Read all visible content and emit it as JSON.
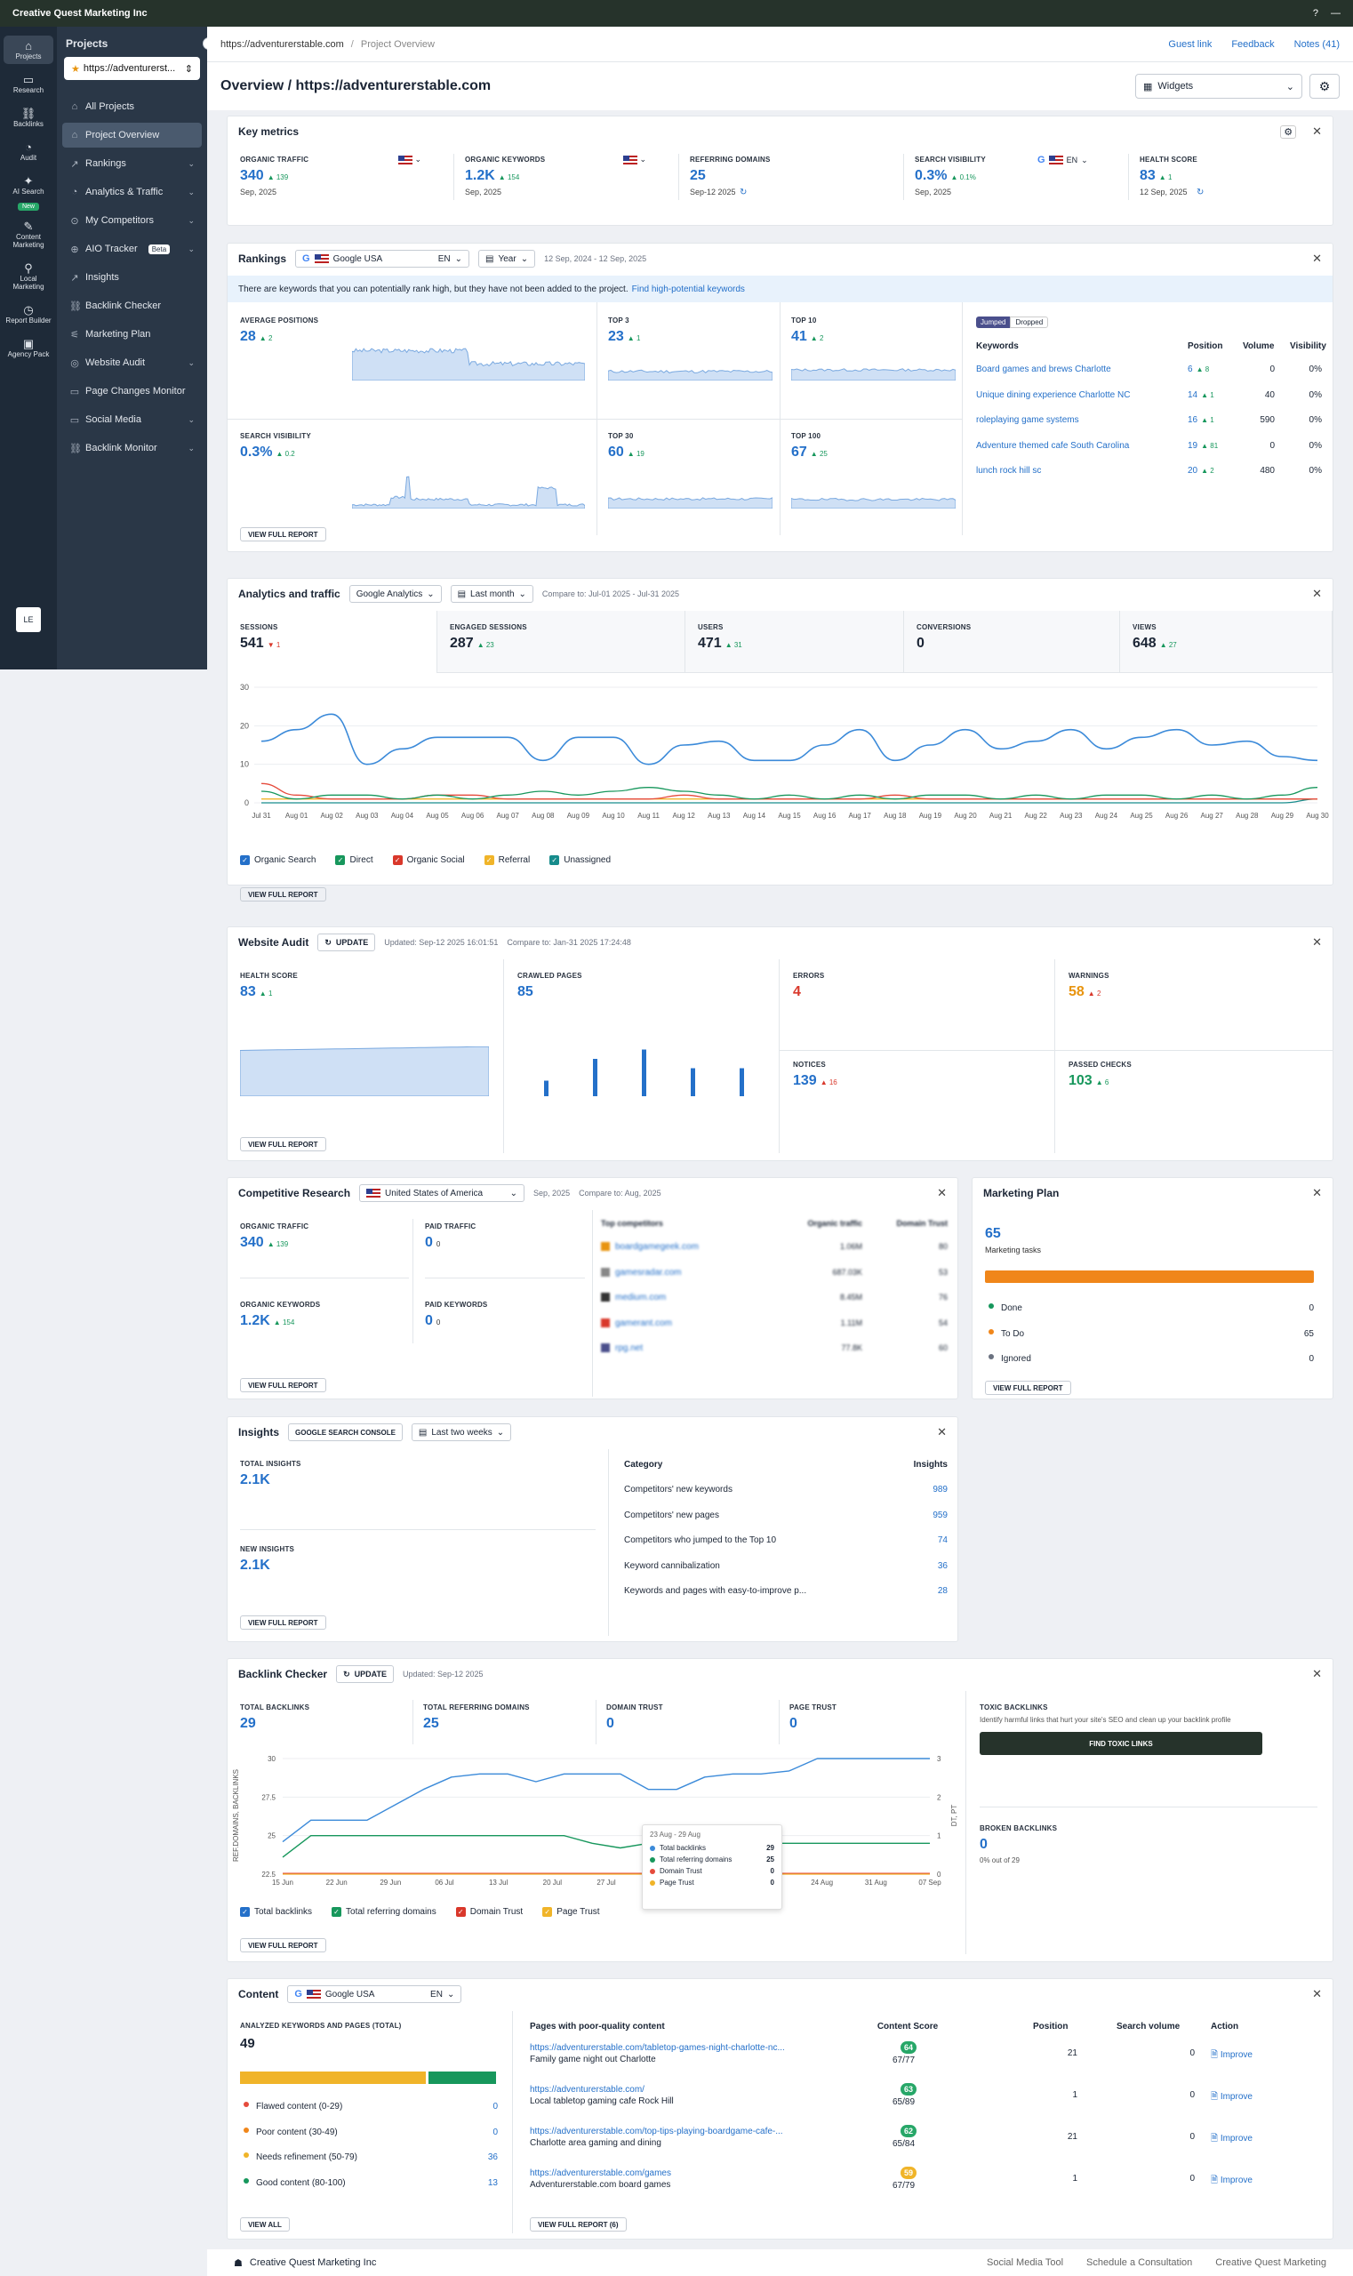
{
  "topbar": {
    "org": "Creative Quest Marketing Inc"
  },
  "rail": [
    {
      "label": "Projects",
      "icon": "home-icon"
    },
    {
      "label": "Research",
      "icon": "research-icon"
    },
    {
      "label": "Backlinks",
      "icon": "link-icon"
    },
    {
      "label": "Audit",
      "icon": "audit-icon"
    },
    {
      "label": "AI Search",
      "icon": "sparkle-icon"
    },
    {
      "label": "Content Marketing",
      "icon": "content-icon"
    },
    {
      "label": "Local Marketing",
      "icon": "pin-icon"
    },
    {
      "label": "Report Builder",
      "icon": "report-icon"
    },
    {
      "label": "Agency Pack",
      "icon": "agency-icon"
    }
  ],
  "rail_new": "New",
  "avatar": "LE",
  "sidebar": {
    "title": "Projects",
    "project": "https://adventurerst...",
    "items": [
      {
        "label": "All Projects"
      },
      {
        "label": "Project Overview"
      },
      {
        "label": "Rankings"
      },
      {
        "label": "Analytics & Traffic"
      },
      {
        "label": "My Competitors"
      },
      {
        "label": "AIO Tracker"
      },
      {
        "label": "Insights"
      },
      {
        "label": "Backlink Checker"
      },
      {
        "label": "Marketing Plan"
      },
      {
        "label": "Website Audit"
      },
      {
        "label": "Page Changes Monitor"
      },
      {
        "label": "Social Media"
      },
      {
        "label": "Backlink Monitor"
      }
    ],
    "beta": "Beta"
  },
  "crumb": {
    "site": "https://adventurerstable.com",
    "page": "Project Overview",
    "links": [
      "Guest link",
      "Feedback",
      "Notes (41)"
    ]
  },
  "header": {
    "title": "Overview / https://adventurerstable.com",
    "widgets": "Widgets"
  },
  "key_metrics": {
    "title": "Key metrics",
    "items": [
      {
        "label": "ORGANIC TRAFFIC",
        "value": "340",
        "delta": "▲ 139",
        "sub": "Sep, 2025"
      },
      {
        "label": "ORGANIC KEYWORDS",
        "value": "1.2K",
        "delta": "▲ 154",
        "sub": "Sep, 2025"
      },
      {
        "label": "REFERRING DOMAINS",
        "value": "25",
        "delta": "",
        "sub": "Sep-12 2025"
      },
      {
        "label": "SEARCH VISIBILITY",
        "value": "0.3%",
        "delta": "▲ 0.1%",
        "sub": "Sep, 2025",
        "lang": "EN"
      },
      {
        "label": "HEALTH SCORE",
        "value": "83",
        "delta": "▲ 1",
        "sub": "12 Sep, 2025"
      }
    ]
  },
  "rankings": {
    "title": "Rankings",
    "engine": "Google USA",
    "lang": "EN",
    "period": "Year",
    "range": "12 Sep, 2024 - 12 Sep, 2025",
    "notice": "There are keywords that you can potentially rank high, but they have not been added to the project.",
    "notice_link": "Find high-potential keywords",
    "avg": {
      "label": "AVERAGE POSITIONS",
      "value": "28",
      "delta": "▲ 2"
    },
    "vis": {
      "label": "SEARCH VISIBILITY",
      "value": "0.3%",
      "delta": "▲ 0.2"
    },
    "top3": {
      "label": "TOP 3",
      "value": "23",
      "delta": "▲ 1"
    },
    "top10": {
      "label": "TOP 10",
      "value": "41",
      "delta": "▲ 2"
    },
    "top30": {
      "label": "TOP 30",
      "value": "60",
      "delta": "▲ 19"
    },
    "top100": {
      "label": "TOP 100",
      "value": "67",
      "delta": "▲ 25"
    },
    "tabs": [
      "Jumped",
      "Dropped"
    ],
    "cols": [
      "Keywords",
      "Position",
      "Volume",
      "Visibility"
    ],
    "rows": [
      {
        "kw": "Board games and brews Charlotte",
        "pos": "6",
        "d": "▲ 8",
        "vol": "0",
        "vis": "0%"
      },
      {
        "kw": "Unique dining experience Charlotte NC",
        "pos": "14",
        "d": "▲ 1",
        "vol": "40",
        "vis": "0%"
      },
      {
        "kw": "roleplaying game systems",
        "pos": "16",
        "d": "▲ 1",
        "vol": "590",
        "vis": "0%"
      },
      {
        "kw": "Adventure themed cafe South Carolina",
        "pos": "19",
        "d": "▲ 81",
        "vol": "0",
        "vis": "0%"
      },
      {
        "kw": "lunch rock hill sc",
        "pos": "20",
        "d": "▲ 2",
        "vol": "480",
        "vis": "0%"
      }
    ],
    "vfr": "VIEW FULL REPORT"
  },
  "analytics": {
    "title": "Analytics and traffic",
    "source": "Google Analytics",
    "period": "Last month",
    "compare": "Compare to: Jul-01 2025 - Jul-31 2025",
    "metrics": [
      {
        "label": "SESSIONS",
        "value": "541",
        "delta": "▼ 1"
      },
      {
        "label": "ENGAGED SESSIONS",
        "value": "287",
        "delta": "▲ 23"
      },
      {
        "label": "USERS",
        "value": "471",
        "delta": "▲ 31"
      },
      {
        "label": "CONVERSIONS",
        "value": "0",
        "delta": ""
      },
      {
        "label": "VIEWS",
        "value": "648",
        "delta": "▲ 27"
      }
    ],
    "legend": [
      "Organic Search",
      "Direct",
      "Organic Social",
      "Referral",
      "Unassigned"
    ],
    "vfr": "VIEW FULL REPORT"
  },
  "chart_data": {
    "type": "line",
    "yticks": [
      "0",
      "10",
      "20",
      "30"
    ],
    "ylim": [
      0,
      30
    ],
    "categories": [
      "Jul 31",
      "Aug 01",
      "Aug 02",
      "Aug 03",
      "Aug 04",
      "Aug 05",
      "Aug 06",
      "Aug 07",
      "Aug 08",
      "Aug 09",
      "Aug 10",
      "Aug 11",
      "Aug 12",
      "Aug 13",
      "Aug 14",
      "Aug 15",
      "Aug 16",
      "Aug 17",
      "Aug 18",
      "Aug 19",
      "Aug 20",
      "Aug 21",
      "Aug 22",
      "Aug 23",
      "Aug 24",
      "Aug 25",
      "Aug 26",
      "Aug 27",
      "Aug 28",
      "Aug 29",
      "Aug 30"
    ],
    "series": [
      {
        "name": "Organic Search",
        "color": "#3b8ad9",
        "values": [
          16,
          19,
          23,
          10,
          14,
          17,
          17,
          17,
          11,
          17,
          17,
          10,
          15,
          16,
          11,
          11,
          15,
          19,
          11,
          15,
          19,
          14,
          16,
          19,
          14,
          17,
          19,
          15,
          16,
          12,
          11
        ]
      },
      {
        "name": "Direct",
        "color": "#17975c",
        "values": [
          3,
          1,
          2,
          2,
          1,
          2,
          1,
          2,
          3,
          2,
          3,
          4,
          3,
          2,
          1,
          2,
          1,
          2,
          1,
          2,
          2,
          1,
          2,
          1,
          2,
          2,
          1,
          2,
          1,
          2,
          4
        ]
      },
      {
        "name": "Organic Social",
        "color": "#e54b3c",
        "values": [
          5,
          2,
          1,
          1,
          1,
          2,
          2,
          1,
          1,
          1,
          1,
          1,
          2,
          1,
          1,
          1,
          1,
          1,
          2,
          1,
          1,
          1,
          1,
          1,
          1,
          1,
          1,
          1,
          1,
          1,
          1
        ]
      },
      {
        "name": "Referral",
        "color": "#f0b429",
        "values": [
          1,
          1,
          1,
          1,
          1,
          1,
          1,
          1,
          1,
          1,
          1,
          1,
          1,
          1,
          1,
          1,
          1,
          1,
          1,
          1,
          1,
          1,
          1,
          1,
          1,
          1,
          1,
          1,
          1,
          1,
          1
        ]
      },
      {
        "name": "Unassigned",
        "color": "#178c8c",
        "values": [
          0,
          0,
          0,
          0,
          0,
          0,
          0,
          0,
          0,
          0,
          0,
          0,
          0,
          0,
          0,
          0,
          0,
          0,
          0,
          0,
          0,
          0,
          0,
          0,
          0,
          0,
          0,
          0,
          0,
          0,
          1
        ]
      }
    ]
  },
  "audit": {
    "title": "Website Audit",
    "update": "UPDATE",
    "updated": "Updated: Sep-12 2025 16:01:51",
    "compare": "Compare to: Jan-31 2025 17:24:48",
    "health": {
      "label": "HEALTH SCORE",
      "value": "83",
      "delta": "▲ 1"
    },
    "crawled": {
      "label": "CRAWLED PAGES",
      "value": "85"
    },
    "errors": {
      "label": "ERRORS",
      "value": "4"
    },
    "warnings": {
      "label": "WARNINGS",
      "value": "58",
      "delta": "▲ 2"
    },
    "notices": {
      "label": "NOTICES",
      "value": "139",
      "delta": "▲ 16"
    },
    "passed": {
      "label": "PASSED CHECKS",
      "value": "103",
      "delta": "▲ 6"
    },
    "vfr": "VIEW FULL REPORT"
  },
  "competitive": {
    "title": "Competitive Research",
    "country": "United States of America",
    "date": "Sep, 2025",
    "compare": "Compare to: Aug, 2025",
    "ot": {
      "label": "ORGANIC TRAFFIC",
      "value": "340",
      "delta": "▲ 139"
    },
    "pt": {
      "label": "PAID TRAFFIC",
      "value": "0",
      "delta": "0"
    },
    "ok": {
      "label": "ORGANIC KEYWORDS",
      "value": "1.2K",
      "delta": "▲ 154"
    },
    "pk": {
      "label": "PAID KEYWORDS",
      "value": "0",
      "delta": "0"
    },
    "cols": [
      "Top competitors",
      "Organic traffic",
      "Domain Trust"
    ],
    "rows": [
      {
        "d": "boardgamegeek.com",
        "t": "1.06M",
        "s": "80"
      },
      {
        "d": "gamesradar.com",
        "t": "687.03K",
        "s": "53"
      },
      {
        "d": "medium.com",
        "t": "8.45M",
        "s": "76"
      },
      {
        "d": "gamerant.com",
        "t": "1.11M",
        "s": "54"
      },
      {
        "d": "rpg.net",
        "t": "77.8K",
        "s": "60"
      }
    ],
    "vfr": "VIEW FULL REPORT"
  },
  "marketing_plan": {
    "title": "Marketing Plan",
    "value": "65",
    "sub": "Marketing tasks",
    "rows": [
      {
        "label": "Done",
        "value": "0",
        "color": "#17975c"
      },
      {
        "label": "To Do",
        "value": "65",
        "color": "#f0861a"
      },
      {
        "label": "Ignored",
        "value": "0",
        "color": "#6b7280"
      }
    ],
    "vfr": "VIEW FULL REPORT"
  },
  "insights": {
    "title": "Insights",
    "source": "GOOGLE SEARCH CONSOLE",
    "period": "Last two weeks",
    "total": {
      "label": "TOTAL INSIGHTS",
      "value": "2.1K"
    },
    "new": {
      "label": "NEW INSIGHTS",
      "value": "2.1K"
    },
    "cols": [
      "Category",
      "Insights"
    ],
    "rows": [
      {
        "c": "Competitors' new keywords",
        "v": "989"
      },
      {
        "c": "Competitors' new pages",
        "v": "959"
      },
      {
        "c": "Competitors who jumped to the Top 10",
        "v": "74"
      },
      {
        "c": "Keyword cannibalization",
        "v": "36"
      },
      {
        "c": "Keywords and pages with easy-to-improve p...",
        "v": "28"
      }
    ],
    "vfr": "VIEW FULL REPORT"
  },
  "backlinks": {
    "title": "Backlink Checker",
    "update": "UPDATE",
    "updated": "Updated: Sep-12 2025",
    "metrics": [
      {
        "label": "TOTAL BACKLINKS",
        "value": "29"
      },
      {
        "label": "TOTAL REFERRING DOMAINS",
        "value": "25"
      },
      {
        "label": "DOMAIN TRUST",
        "value": "0"
      },
      {
        "label": "PAGE TRUST",
        "value": "0"
      }
    ],
    "toxic": {
      "label": "TOXIC BACKLINKS",
      "desc": "Identify harmful links that hurt your site's SEO and clean up your backlink profile",
      "btn": "FIND TOXIC LINKS"
    },
    "broken": {
      "label": "BROKEN BACKLINKS",
      "value": "0",
      "sub": "0% out of 29"
    },
    "yleft": "REF.DOMAINS, BACKLINKS",
    "yright": "DT, PT",
    "yticks_l": [
      "22.5",
      "25",
      "27.5",
      "30"
    ],
    "yticks_r": [
      "0",
      "1",
      "2",
      "3"
    ],
    "xticks": [
      "15 Jun",
      "22 Jun",
      "29 Jun",
      "06 Jul",
      "13 Jul",
      "20 Jul",
      "27 Jul",
      "03 Aug",
      "10 Aug",
      "17 Aug",
      "24 Aug",
      "31 Aug",
      "07 Sep"
    ],
    "tooltip": {
      "range": "23 Aug - 29 Aug",
      "rows": [
        {
          "l": "Total backlinks",
          "v": "29",
          "c": "#3b8ad9"
        },
        {
          "l": "Total referring domains",
          "v": "25",
          "c": "#17975c"
        },
        {
          "l": "Domain Trust",
          "v": "0",
          "c": "#e54b3c"
        },
        {
          "l": "Page Trust",
          "v": "0",
          "c": "#f0b429"
        }
      ]
    },
    "legend": [
      "Total backlinks",
      "Total referring domains",
      "Domain Trust",
      "Page Trust"
    ],
    "vfr": "VIEW FULL REPORT"
  },
  "content": {
    "title": "Content",
    "engine": "Google USA",
    "lang": "EN",
    "analyzed": {
      "label": "ANALYZED KEYWORDS AND PAGES (TOTAL)",
      "value": "49"
    },
    "dist": [
      {
        "label": "Flawed content (0-29)",
        "value": "0",
        "color": "#e54b3c"
      },
      {
        "label": "Poor content (30-49)",
        "value": "0",
        "color": "#f0861a"
      },
      {
        "label": "Needs refinement (50-79)",
        "value": "36",
        "color": "#f0b429"
      },
      {
        "label": "Good content (80-100)",
        "value": "13",
        "color": "#17975c"
      }
    ],
    "cols": [
      "Pages with poor-quality content",
      "Content Score",
      "Position",
      "Search volume",
      "Action"
    ],
    "rows": [
      {
        "url": "https://adventurerstable.com/tabletop-games-night-charlotte-nc...",
        "desc": "Family game night out Charlotte",
        "score": "64",
        "ratio": "67/77",
        "pos": "21",
        "vol": "0",
        "act": "Improve",
        "pc": "#27a768"
      },
      {
        "url": "https://adventurerstable.com/",
        "desc": "Local tabletop gaming cafe Rock Hill",
        "score": "63",
        "ratio": "65/89",
        "pos": "1",
        "vol": "0",
        "act": "Improve",
        "pc": "#27a768"
      },
      {
        "url": "https://adventurerstable.com/top-tips-playing-boardgame-cafe-...",
        "desc": "Charlotte area gaming and dining",
        "score": "62",
        "ratio": "65/84",
        "pos": "21",
        "vol": "0",
        "act": "Improve",
        "pc": "#27a768"
      },
      {
        "url": "https://adventurerstable.com/games",
        "desc": "Adventurerstable.com board games",
        "score": "59",
        "ratio": "67/79",
        "pos": "1",
        "vol": "0",
        "act": "Improve",
        "pc": "#f0b429"
      }
    ],
    "view_all": "VIEW ALL",
    "vfr": "VIEW FULL REPORT (6)"
  },
  "footer": {
    "org": "Creative Quest Marketing Inc",
    "links": [
      "Social Media Tool",
      "Schedule a Consultation",
      "Creative Quest Marketing"
    ]
  }
}
